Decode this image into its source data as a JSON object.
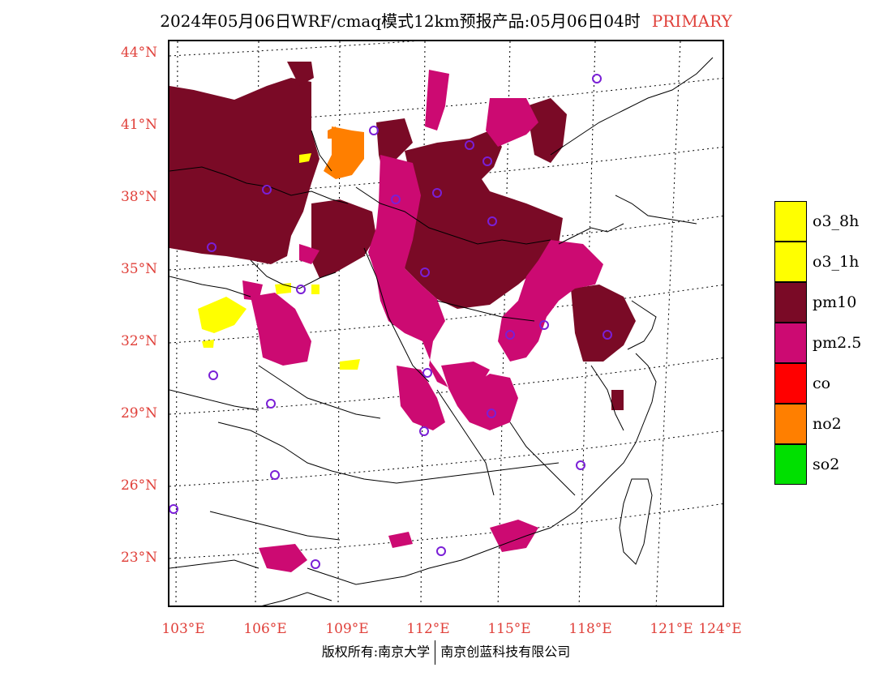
{
  "title": {
    "main": "2024年05月06日WRF/cmaq模式12km预报产品:05月06日04时",
    "tag": "PRIMARY"
  },
  "axes": {
    "lat_labels": [
      "44°N",
      "41°N",
      "38°N",
      "35°N",
      "32°N",
      "29°N",
      "26°N",
      "23°N"
    ],
    "lon_labels": [
      "103°E",
      "106°E",
      "109°E",
      "112°E",
      "115°E",
      "118°E",
      "121°E",
      "124°E"
    ]
  },
  "legend": {
    "items": [
      {
        "label": "o3_8h",
        "color": "#ffff00"
      },
      {
        "label": "o3_1h",
        "color": "#ffff00"
      },
      {
        "label": "pm10",
        "color": "#7a0a26"
      },
      {
        "label": "pm2.5",
        "color": "#cc0a72"
      },
      {
        "label": "co",
        "color": "#ff0000"
      },
      {
        "label": "no2",
        "color": "#ff7f00"
      },
      {
        "label": "so2",
        "color": "#00e000"
      }
    ]
  },
  "colors": {
    "pm10": "#7a0a26",
    "pm25": "#cc0a72",
    "o3": "#ffff00",
    "no2": "#ff7f00",
    "station": "#7a1fd6",
    "axis_text": "#e0403a"
  },
  "footer": {
    "copyright": "版权所有:南京大学",
    "company": "南京创蓝科技有限公司"
  }
}
